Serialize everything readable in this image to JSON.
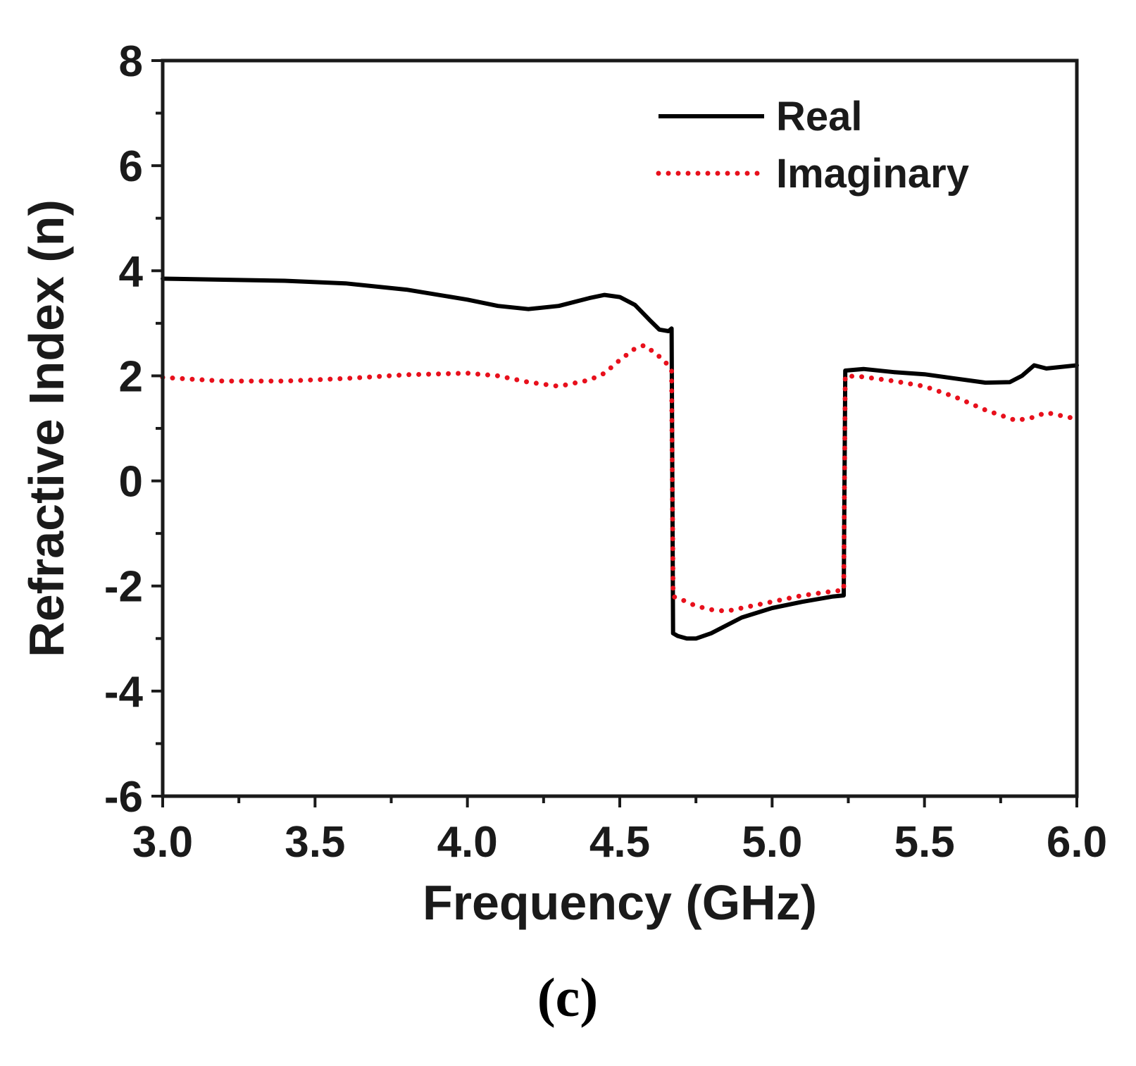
{
  "chart_data": {
    "type": "line",
    "title": "",
    "xlabel": "Frequency (GHz)",
    "ylabel": "Refractive Index (n)",
    "xlim": [
      3.0,
      6.0
    ],
    "ylim": [
      -6,
      8
    ],
    "xticks": [
      3.0,
      3.5,
      4.0,
      4.5,
      5.0,
      5.5,
      6.0
    ],
    "xtick_labels": [
      "3.0",
      "3.5",
      "4.0",
      "4.5",
      "5.0",
      "5.5",
      "6.0"
    ],
    "yticks": [
      -6,
      -4,
      -2,
      0,
      2,
      4,
      6,
      8
    ],
    "ytick_labels": [
      "-6",
      "-4",
      "-2",
      "0",
      "2",
      "4",
      "6",
      "8"
    ],
    "grid": false,
    "legend_position": "top-right",
    "panel_label": "(c)",
    "series": [
      {
        "name": "Real",
        "color": "#000000",
        "style": "solid",
        "x": [
          3.0,
          3.2,
          3.4,
          3.6,
          3.8,
          4.0,
          4.1,
          4.2,
          4.3,
          4.4,
          4.45,
          4.5,
          4.55,
          4.6,
          4.63,
          4.66,
          4.67,
          4.675,
          4.69,
          4.72,
          4.75,
          4.8,
          4.9,
          5.0,
          5.1,
          5.2,
          5.235,
          5.24,
          5.3,
          5.4,
          5.5,
          5.6,
          5.7,
          5.78,
          5.82,
          5.86,
          5.9,
          6.0
        ],
        "y": [
          3.85,
          3.83,
          3.81,
          3.76,
          3.64,
          3.45,
          3.33,
          3.27,
          3.33,
          3.48,
          3.54,
          3.5,
          3.35,
          3.05,
          2.88,
          2.85,
          2.9,
          -2.9,
          -2.95,
          -3.0,
          -3.0,
          -2.9,
          -2.6,
          -2.42,
          -2.3,
          -2.2,
          -2.18,
          2.1,
          2.13,
          2.07,
          2.03,
          1.95,
          1.87,
          1.88,
          2.0,
          2.2,
          2.14,
          2.2
        ]
      },
      {
        "name": "Imaginary",
        "color": "#e8101c",
        "style": "dotted",
        "x": [
          3.0,
          3.2,
          3.4,
          3.6,
          3.8,
          4.0,
          4.1,
          4.2,
          4.3,
          4.4,
          4.45,
          4.5,
          4.55,
          4.58,
          4.62,
          4.66,
          4.67,
          4.675,
          4.7,
          4.75,
          4.8,
          4.85,
          4.9,
          5.0,
          5.1,
          5.2,
          5.235,
          5.24,
          5.3,
          5.4,
          5.5,
          5.6,
          5.7,
          5.8,
          5.85,
          5.9,
          6.0
        ],
        "y": [
          1.97,
          1.9,
          1.9,
          1.95,
          2.02,
          2.05,
          2.0,
          1.88,
          1.8,
          1.92,
          2.05,
          2.3,
          2.52,
          2.58,
          2.42,
          2.2,
          2.1,
          -2.2,
          -2.25,
          -2.38,
          -2.45,
          -2.48,
          -2.42,
          -2.3,
          -2.18,
          -2.1,
          -2.08,
          2.0,
          1.98,
          1.9,
          1.8,
          1.6,
          1.35,
          1.15,
          1.2,
          1.3,
          1.18
        ]
      }
    ]
  }
}
